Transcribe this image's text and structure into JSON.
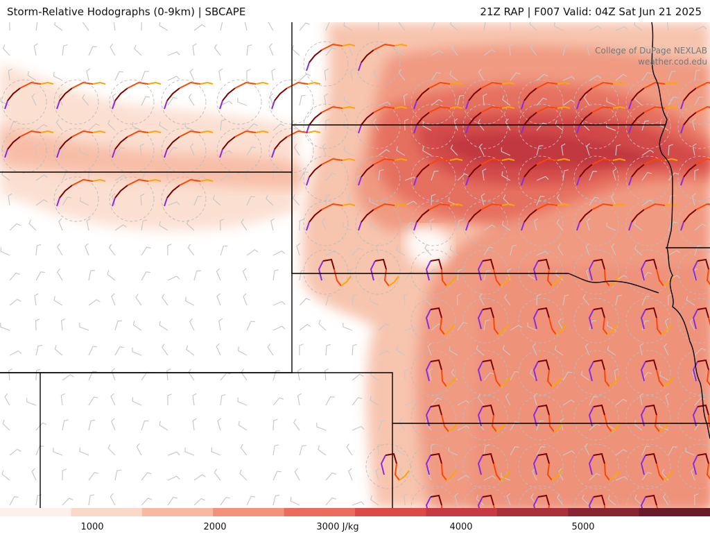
{
  "header": {
    "left_title": "Storm-Relative Hodographs (0-9km) | SBCAPE",
    "right_title": "21Z RAP | F007 Valid: 04Z Sat Jun 21 2025"
  },
  "credit": {
    "line1": "College of DuPage NEXLAB",
    "line2": "weather.cod.edu"
  },
  "colorbar": {
    "labels": [
      "1000",
      "2000",
      "3000 J/kg",
      "4000",
      "5000"
    ],
    "colors": [
      "#fdf0ea",
      "#fbd9c9",
      "#f8b9a0",
      "#f3917a",
      "#eb6b5c",
      "#dc4a48",
      "#c73a41",
      "#a92f3b",
      "#872532",
      "#6a1b29"
    ]
  },
  "hodograph_colors": {
    "layer_0_1km": "#8a2be2",
    "layer_1_3km": "#7a0000",
    "layer_3_6km": "#ff4500",
    "layer_6_9km": "#ffa500"
  }
}
